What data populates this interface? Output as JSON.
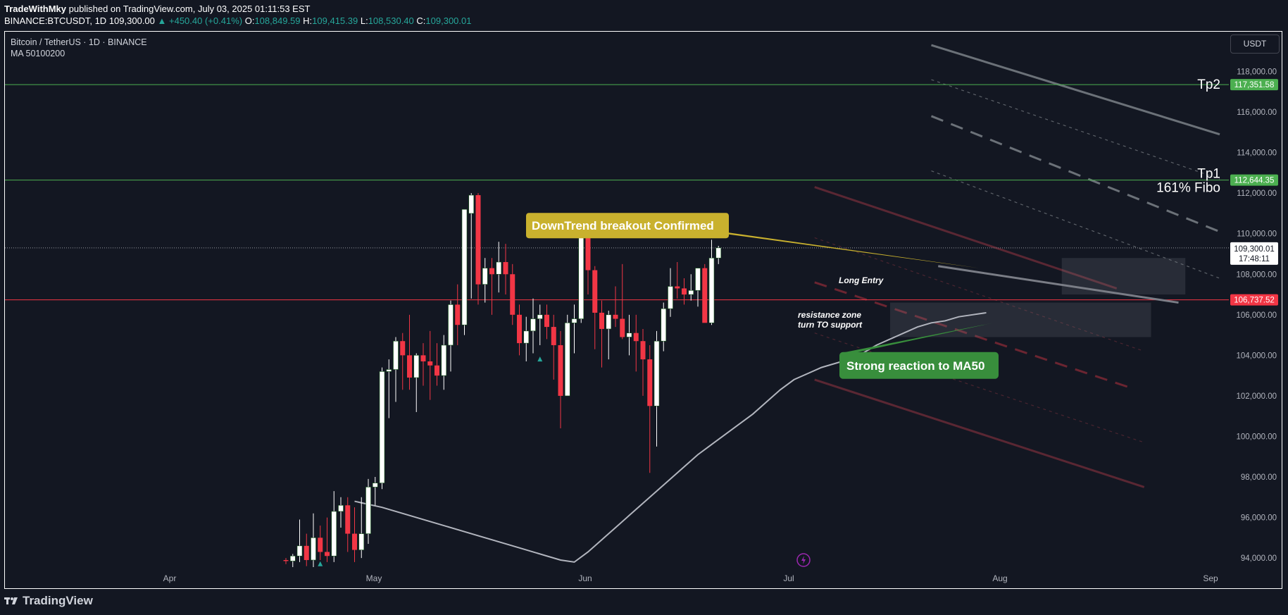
{
  "header": {
    "author": "TradeWithMky",
    "published": "published on TradingView.com, July 03, 2025 01:11:53 EST",
    "symbol": "BINANCE:BTCUSDT, 1D",
    "last": "109,300.00",
    "change": "▲ +450.40 (+0.41%)",
    "o_label": "O:",
    "o_value": "108,849.59",
    "h_label": "H:",
    "h_value": "109,415.39",
    "l_label": "L:",
    "l_value": "108,530.40",
    "c_label": "C:",
    "c_value": "109,300.01"
  },
  "legend": {
    "title": "Bitcoin / TetherUS · 1D · BINANCE",
    "indicator": "MA 50100200"
  },
  "currency_button": "USDT",
  "footer": {
    "brand": "TradingView"
  },
  "colors": {
    "background": "#131722",
    "up": "#26a69a",
    "candle_up": "#ffffff",
    "candle_down": "#f23645",
    "tp_line": "#4caf50",
    "support_line": "#f23645",
    "callout_yellow": "#c9b12e",
    "callout_green": "#388e3c"
  },
  "chart_data": {
    "type": "candlestick",
    "ylim": [
      93500,
      119500
    ],
    "y_ticks": [
      "118,000.00",
      "116,000.00",
      "114,000.00",
      "112,000.00",
      "110,000.00",
      "108,000.00",
      "106,000.00",
      "104,000.00",
      "102,000.00",
      "100,000.00",
      "98,000.00",
      "96,000.00",
      "94,000.00"
    ],
    "x_tick_labels": [
      "Apr",
      "May",
      "Jun",
      "Jul",
      "Aug",
      "Sep"
    ],
    "price_tags": [
      {
        "label": "117,351.58",
        "kind": "green"
      },
      {
        "label": "112,644.35",
        "kind": "green"
      },
      {
        "label": "109,300.01",
        "sub": "17:48:11",
        "kind": "current"
      },
      {
        "label": "106,737.52",
        "kind": "red"
      }
    ],
    "levels": [
      {
        "name": "Tp2",
        "value": 117351.58
      },
      {
        "name": "Tp1",
        "value": 112644.35
      },
      {
        "name": "support",
        "value": 106737.52
      },
      {
        "name": "last",
        "value": 109300.01
      }
    ],
    "level_labels": {
      "tp2": "Tp2",
      "tp1": "Tp1",
      "fibo": "161% Fibo"
    },
    "annotations": {
      "breakout": "DownTrend breakout Confirmed",
      "ma50": "Strong reaction to MA50",
      "long_entry": "Long Entry",
      "zone_line1": "resistance zone",
      "zone_line2": "turn TO support"
    },
    "candles": [
      [
        93900,
        94000,
        93700,
        93850
      ],
      [
        93850,
        94200,
        93500,
        94100
      ],
      [
        94100,
        95900,
        93800,
        94600
      ],
      [
        94600,
        95200,
        93600,
        93900
      ],
      [
        93900,
        96200,
        93500,
        95000
      ],
      [
        95000,
        95600,
        93900,
        94300
      ],
      [
        94300,
        96000,
        93800,
        94100
      ],
      [
        94100,
        97300,
        93800,
        96300
      ],
      [
        96300,
        97000,
        95500,
        96600
      ],
      [
        96600,
        97000,
        94300,
        95200
      ],
      [
        95200,
        96500,
        93800,
        94400
      ],
      [
        94400,
        97000,
        94000,
        95200
      ],
      [
        95200,
        97900,
        94700,
        97500
      ],
      [
        97500,
        98000,
        96600,
        97700
      ],
      [
        97700,
        103400,
        97400,
        103200
      ],
      [
        103200,
        103800,
        100900,
        103300
      ],
      [
        103300,
        104900,
        101700,
        104700
      ],
      [
        104700,
        105100,
        102300,
        104000
      ],
      [
        104000,
        106000,
        102300,
        102900
      ],
      [
        102900,
        104100,
        101200,
        104000
      ],
      [
        104000,
        104600,
        102500,
        103700
      ],
      [
        103700,
        105200,
        101800,
        103500
      ],
      [
        103500,
        104600,
        102500,
        103000
      ],
      [
        103000,
        105000,
        102300,
        104500
      ],
      [
        104500,
        106700,
        103200,
        106500
      ],
      [
        106500,
        107500,
        104500,
        105500
      ],
      [
        105500,
        111000,
        105000,
        111200
      ],
      [
        111000,
        112000,
        106800,
        111900
      ],
      [
        111900,
        112000,
        106500,
        107500
      ],
      [
        107500,
        108800,
        106600,
        108300
      ],
      [
        108300,
        108800,
        106000,
        108000
      ],
      [
        108000,
        109600,
        107100,
        108600
      ],
      [
        108600,
        109500,
        107000,
        108000
      ],
      [
        108000,
        108500,
        105500,
        106000
      ],
      [
        106000,
        106500,
        104000,
        104600
      ],
      [
        104600,
        105900,
        103700,
        105200
      ],
      [
        105200,
        106800,
        104100,
        105800
      ],
      [
        105800,
        106500,
        104500,
        106000
      ],
      [
        106000,
        106500,
        104800,
        105400
      ],
      [
        105400,
        106000,
        102800,
        104500
      ],
      [
        104500,
        105200,
        100400,
        102000
      ],
      [
        102000,
        106000,
        102000,
        105600
      ],
      [
        105600,
        106500,
        104100,
        105800
      ],
      [
        105800,
        110500,
        105600,
        110300
      ],
      [
        110300,
        110400,
        107000,
        108200
      ],
      [
        108200,
        108400,
        104300,
        106100
      ],
      [
        106100,
        106700,
        103400,
        105300
      ],
      [
        105300,
        106200,
        103800,
        106000
      ],
      [
        106000,
        107400,
        105400,
        105800
      ],
      [
        105800,
        108500,
        104800,
        104900
      ],
      [
        104900,
        106000,
        104000,
        105100
      ],
      [
        105100,
        106000,
        103200,
        104700
      ],
      [
        104700,
        105300,
        102000,
        103800
      ],
      [
        103800,
        104500,
        98200,
        101500
      ],
      [
        101500,
        105200,
        99500,
        104700
      ],
      [
        104700,
        106600,
        104200,
        106300
      ],
      [
        106300,
        108300,
        105900,
        107400
      ],
      [
        107400,
        108600,
        106800,
        107300
      ],
      [
        107300,
        107800,
        106500,
        107000
      ],
      [
        107000,
        108000,
        106700,
        107200
      ],
      [
        107200,
        108200,
        106400,
        108300
      ],
      [
        108300,
        108500,
        105800,
        105600
      ],
      [
        105600,
        109700,
        105500,
        108800
      ],
      [
        108800,
        109400,
        108500,
        109300
      ]
    ],
    "ma50": [
      [
        10,
        96800
      ],
      [
        14,
        96500
      ],
      [
        18,
        96100
      ],
      [
        22,
        95700
      ],
      [
        26,
        95300
      ],
      [
        30,
        94900
      ],
      [
        34,
        94500
      ],
      [
        38,
        94100
      ],
      [
        40,
        93900
      ],
      [
        42,
        93800
      ],
      [
        44,
        94300
      ],
      [
        46,
        94900
      ],
      [
        48,
        95500
      ],
      [
        50,
        96100
      ],
      [
        52,
        96700
      ],
      [
        54,
        97300
      ],
      [
        56,
        97900
      ],
      [
        58,
        98500
      ],
      [
        60,
        99100
      ],
      [
        62,
        99600
      ],
      [
        64,
        100100
      ],
      [
        66,
        100600
      ],
      [
        68,
        101100
      ],
      [
        70,
        101700
      ],
      [
        72,
        102300
      ],
      [
        74,
        102800
      ],
      [
        76,
        103100
      ],
      [
        78,
        103400
      ],
      [
        80,
        103600
      ],
      [
        82,
        103800
      ],
      [
        84,
        104100
      ],
      [
        86,
        104500
      ],
      [
        88,
        104800
      ],
      [
        90,
        105100
      ],
      [
        92,
        105400
      ],
      [
        94,
        105600
      ],
      [
        96,
        105700
      ],
      [
        98,
        105900
      ],
      [
        100,
        106000
      ],
      [
        102,
        106100
      ]
    ],
    "channel": {
      "upper": [
        [
          77,
          112300
        ],
        [
          121,
          107300
        ]
      ],
      "lower": [
        [
          77,
          102800
        ],
        [
          125,
          97500
        ]
      ],
      "middle_dash": [
        [
          77,
          107600
        ],
        [
          123,
          102400
        ]
      ],
      "inner_upper_dash": [
        [
          77,
          109800
        ],
        [
          125,
          104200
        ]
      ],
      "inner_lower_dash": [
        [
          77,
          105100
        ],
        [
          125,
          99700
        ]
      ]
    },
    "breakout_line": [
      [
        95,
        108400
      ],
      [
        130,
        106600
      ]
    ],
    "projection": {
      "upper": [
        [
          94,
          119300
        ],
        [
          136,
          114900
        ]
      ],
      "upper_dash": [
        [
          94,
          117600
        ],
        [
          136,
          112700
        ]
      ],
      "mid_dash": [
        [
          94,
          115800
        ],
        [
          136,
          110100
        ]
      ],
      "lower_dash": [
        [
          94,
          113100
        ],
        [
          136,
          107800
        ]
      ]
    },
    "zones": {
      "long_entry": [
        [
          113,
          108800
        ],
        [
          131,
          107000
        ]
      ],
      "support_zone": [
        [
          88,
          106600
        ],
        [
          126,
          104900
        ]
      ]
    }
  }
}
